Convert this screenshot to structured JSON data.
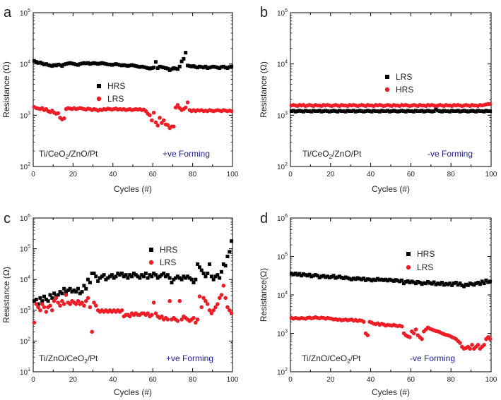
{
  "figure": {
    "panels": [
      {
        "letter": "a",
        "sample": "Ti/CeO",
        "sample_sub": "2",
        "sample_rest": "/ZnO/Pt",
        "forming": "+ve Forming",
        "ylabel": "Resistance (Ω)",
        "xlabel": "Cycles (#)"
      },
      {
        "letter": "b",
        "sample": "Ti/CeO",
        "sample_sub": "2",
        "sample_rest": "/ZnO/Pt",
        "forming": "-ve Forming",
        "ylabel": "Resistance (Ω)",
        "xlabel": "Cycles (#)"
      },
      {
        "letter": "c",
        "sample": "Ti/ZnO/CeO",
        "sample_sub": "2",
        "sample_rest": "/Pt",
        "forming": "+ve Forming",
        "ylabel": "Resistance (Ω)",
        "xlabel": "Cycles (#)"
      },
      {
        "letter": "d",
        "sample": "Ti/ZnO/CeO",
        "sample_sub": "2",
        "sample_rest": "/Pt",
        "forming": "-ve Forming",
        "ylabel": "Resistance(Ω)",
        "xlabel": "Cycles (#)"
      }
    ]
  },
  "chart_data": [
    {
      "type": "scatter",
      "panel": "a",
      "title": "",
      "xlabel": "Cycles (#)",
      "ylabel": "Resistance (Ω)",
      "xlim": [
        0,
        100
      ],
      "ylim_log10": [
        2,
        5
      ],
      "yscale": "log",
      "xticks": [
        "0",
        "20",
        "40",
        "60",
        "80",
        "100"
      ],
      "yticks": [
        {
          "base": "10",
          "exp": "2"
        },
        {
          "base": "10",
          "exp": "3"
        },
        {
          "base": "10",
          "exp": "4"
        },
        {
          "base": "10",
          "exp": "5"
        }
      ],
      "legend": [
        "HRS",
        "LRS"
      ],
      "series": [
        {
          "name": "HRS",
          "color": "#000000",
          "marker": "square",
          "log10_values": [
            4.06,
            4.04,
            4.02,
            4.03,
            4.01,
            3.99,
            4,
            3.98,
            3.97,
            3.96,
            3.98,
            3.97,
            3.99,
            3.98,
            3.96,
            3.99,
            4,
            4.01,
            4.02,
            4.01,
            4,
            3.99,
            3.98,
            4,
            4.01,
            4.02,
            4.01,
            4.02,
            4,
            4.01,
            4.02,
            4.01,
            4,
            4.01,
            4.02,
            4.01,
            4,
            3.99,
            3.99,
            3.98,
            3.99,
            4,
            3.99,
            3.98,
            3.97,
            3.98,
            3.97,
            3.96,
            3.97,
            3.98,
            3.97,
            3.96,
            3.95,
            3.94,
            3.95,
            3.94,
            3.93,
            3.92,
            3.91,
            3.92,
            3.93,
            4.04,
            3.92,
            3.95,
            3.94,
            3.93,
            3.92,
            3.91,
            3.88,
            3.9,
            3.92,
            3.91,
            3.9,
            3.95,
            4.05,
            4.1,
            4.22,
            3.97,
            3.96,
            3.95,
            3.96,
            3.94,
            3.93,
            3.95,
            3.94,
            3.93,
            3.95,
            3.92,
            3.93,
            3.94,
            3.95,
            3.94,
            3.93,
            3.92,
            3.94,
            3.95,
            3.93,
            3.92,
            3.94,
            3.95
          ]
        },
        {
          "name": "LRS",
          "color": "#ee1c24",
          "marker": "circle",
          "log10_values": [
            3.16,
            3.14,
            3.13,
            3.12,
            3.14,
            3.1,
            3.12,
            3.08,
            3.06,
            3.09,
            3.05,
            3.03,
            3.04,
            2.95,
            2.92,
            2.94,
            3.12,
            3.14,
            3.13,
            3.12,
            3.14,
            3.12,
            3.13,
            3.14,
            3.13,
            3.12,
            3.11,
            3.13,
            3.12,
            3.1,
            3.12,
            3.11,
            3.09,
            3.11,
            3.1,
            3.12,
            3.11,
            3.13,
            3.12,
            3.11,
            3.12,
            3.13,
            3.11,
            3.12,
            3.11,
            3.12,
            3.1,
            3.11,
            3.12,
            3.1,
            3.11,
            3.12,
            3.11,
            3.12,
            3.1,
            3.11,
            3.08,
            3.03,
            3,
            2.9,
            3.05,
            2.86,
            2.8,
            2.95,
            2.85,
            2.9,
            2.82,
            2.81,
            2.75,
            2.78,
            2.78,
            3.15,
            3.2,
            3.14,
            3.1,
            3.12,
            3.15,
            3.25,
            3.1,
            3.08,
            3.1,
            3.08,
            3.1,
            3.09,
            3.1,
            3.08,
            3.09,
            3.08,
            3.1,
            3.09,
            3.08,
            3.09,
            3.1,
            3.09,
            3.08,
            3.1,
            3.09,
            3.08,
            3.09,
            3.08
          ]
        }
      ]
    },
    {
      "type": "scatter",
      "panel": "b",
      "title": "",
      "xlabel": "Cycles (#)",
      "ylabel": "Resistance (Ω)",
      "xlim": [
        0,
        100
      ],
      "ylim_log10": [
        2,
        5
      ],
      "yscale": "log",
      "xticks": [
        "0",
        "20",
        "40",
        "60",
        "80",
        "100"
      ],
      "yticks": [
        {
          "base": "10",
          "exp": "2"
        },
        {
          "base": "10",
          "exp": "3"
        },
        {
          "base": "10",
          "exp": "4"
        },
        {
          "base": "10",
          "exp": "5"
        }
      ],
      "legend": [
        "LRS",
        "HRS"
      ],
      "series": [
        {
          "name": "LRS",
          "color": "#000000",
          "marker": "square",
          "log10_values": [
            3.08,
            3.09,
            3.07,
            3.08,
            3.09,
            3.08,
            3.07,
            3.09,
            3.08,
            3.08,
            3.07,
            3.09,
            3.08,
            3.08,
            3.09,
            3.07,
            3.08,
            3.09,
            3.08,
            3.07,
            3.08,
            3.09,
            3.08,
            3.07,
            3.09,
            3.08,
            3.08,
            3.07,
            3.09,
            3.08,
            3.08,
            3.09,
            3.07,
            3.08,
            3.09,
            3.08,
            3.07,
            3.08,
            3.09,
            3.08,
            3.07,
            3.09,
            3.08,
            3.08,
            3.07,
            3.09,
            3.08,
            3.08,
            3.09,
            3.07,
            3.08,
            3.09,
            3.08,
            3.07,
            3.08,
            3.09,
            3.08,
            3.07,
            3.09,
            3.08,
            3.08,
            3.07,
            3.09,
            3.08,
            3.08,
            3.09,
            3.07,
            3.08,
            3.09,
            3.08,
            3.07,
            3.08,
            3.12,
            3.09,
            3.08,
            3.07,
            3.09,
            3.08,
            3.08,
            3.07,
            3.09,
            3.08,
            3.08,
            3.09,
            3.07,
            3.08,
            3.09,
            3.08,
            3.07,
            3.08,
            3.09,
            3.08,
            3.07,
            3.09,
            3.08,
            3.08,
            3.07,
            3.09,
            3.08,
            3.08
          ]
        },
        {
          "name": "HRS",
          "color": "#ee1c24",
          "marker": "circle",
          "log10_values": [
            3.19,
            3.2,
            3.19,
            3.18,
            3.2,
            3.19,
            3.2,
            3.18,
            3.19,
            3.2,
            3.19,
            3.18,
            3.2,
            3.19,
            3.19,
            3.18,
            3.2,
            3.19,
            3.2,
            3.19,
            3.18,
            3.19,
            3.2,
            3.19,
            3.18,
            3.2,
            3.19,
            3.19,
            3.18,
            3.2,
            3.19,
            3.2,
            3.19,
            3.18,
            3.19,
            3.2,
            3.19,
            3.18,
            3.2,
            3.19,
            3.19,
            3.18,
            3.2,
            3.19,
            3.2,
            3.19,
            3.18,
            3.19,
            3.2,
            3.19,
            3.18,
            3.2,
            3.19,
            3.19,
            3.18,
            3.2,
            3.19,
            3.2,
            3.19,
            3.18,
            3.19,
            3.2,
            3.19,
            3.18,
            3.2,
            3.19,
            3.19,
            3.18,
            3.2,
            3.19,
            3.2,
            3.19,
            3.18,
            3.19,
            3.2,
            3.19,
            3.18,
            3.2,
            3.19,
            3.19,
            3.18,
            3.2,
            3.19,
            3.2,
            3.19,
            3.18,
            3.19,
            3.2,
            3.19,
            3.18,
            3.2,
            3.19,
            3.19,
            3.18,
            3.2,
            3.19,
            3.2,
            3.21,
            3.22,
            3.22
          ]
        }
      ]
    },
    {
      "type": "scatter",
      "panel": "c",
      "title": "",
      "xlabel": "Cycles (#)",
      "ylabel": "Resistance (Ω)",
      "xlim": [
        0,
        100
      ],
      "ylim_log10": [
        1,
        6
      ],
      "yscale": "log",
      "xticks": [
        "0",
        "20",
        "40",
        "60",
        "80",
        "100"
      ],
      "yticks": [
        {
          "base": "10",
          "exp": "1"
        },
        {
          "base": "10",
          "exp": "2"
        },
        {
          "base": "10",
          "exp": "3"
        },
        {
          "base": "10",
          "exp": "4"
        },
        {
          "base": "10",
          "exp": "5"
        },
        {
          "base": "10",
          "exp": "6"
        }
      ],
      "legend": [
        "HRS",
        "LRS"
      ],
      "series": [
        {
          "name": "HRS",
          "color": "#000000",
          "marker": "square",
          "log10_values": [
            3.3,
            3.35,
            3.2,
            3.4,
            3.3,
            3.45,
            3.35,
            3.3,
            3.5,
            3.4,
            3.55,
            3.45,
            3.5,
            3.6,
            3.55,
            3.7,
            3.6,
            3.65,
            3.7,
            3.6,
            3.65,
            3.6,
            3.7,
            3.55,
            3.6,
            3.8,
            3.7,
            4,
            3.9,
            4.2,
            4.2,
            4.1,
            3.95,
            4.05,
            4.1,
            4.15,
            4,
            4.05,
            4.1,
            4.15,
            4.05,
            4.1,
            4.2,
            4.15,
            4.2,
            4.1,
            4.15,
            4.05,
            4.15,
            4.1,
            4.2,
            4.15,
            4.1,
            4.05,
            4.15,
            4.1,
            4.2,
            4.05,
            4.15,
            4.1,
            4.2,
            4.15,
            4.05,
            4.1,
            4.15,
            4.2,
            4.1,
            4.15,
            4.05,
            3.9,
            4,
            4.05,
            4.1,
            4.05,
            4,
            4.1,
            4.05,
            4.1,
            4.05,
            4,
            3.9,
            4,
            4.5,
            4.4,
            4.3,
            4.2,
            4.1,
            4.2,
            4.5,
            4.1,
            4,
            4.1,
            4.15,
            4.05,
            4.25,
            4.5,
            4.45,
            4.75,
            4.9,
            5.25
          ]
        },
        {
          "name": "LRS",
          "color": "#ee1c24",
          "marker": "circle",
          "log10_values": [
            2.6,
            3.2,
            3.1,
            3,
            3.2,
            3.1,
            2.95,
            3.1,
            3.15,
            3,
            3.3,
            3.4,
            3.25,
            3.15,
            3.3,
            3.2,
            3.5,
            3.25,
            3.2,
            3.3,
            3.25,
            3.2,
            3.3,
            3.2,
            3.25,
            3.15,
            3.3,
            3.4,
            3.1,
            2.3,
            3.25,
            3.15,
            3,
            2.95,
            3,
            2.95,
            3,
            2.95,
            3,
            2.95,
            3,
            2.95,
            3,
            2.95,
            3,
            2.8,
            2.85,
            2.85,
            2.8,
            2.9,
            2.85,
            2.9,
            2.85,
            2.85,
            2.9,
            2.9,
            2.85,
            2.9,
            2.8,
            2.85,
            3.25,
            2.9,
            2.8,
            2.75,
            2.8,
            2.7,
            2.75,
            2.7,
            3.3,
            2.7,
            2.75,
            2.7,
            2.65,
            3.3,
            2.7,
            2.8,
            2.75,
            2.7,
            2.65,
            2.7,
            2.75,
            2.6,
            2.7,
            3.45,
            3.1,
            3.4,
            3.3,
            3.2,
            3,
            2.9,
            3,
            3.1,
            3.2,
            3.4,
            3.5,
            3.8,
            3.4,
            3.1,
            3,
            2.9
          ]
        }
      ]
    },
    {
      "type": "scatter",
      "panel": "d",
      "title": "",
      "xlabel": "Cycles (#)",
      "ylabel": "Resistance(Ω)",
      "xlim": [
        0,
        100
      ],
      "ylim_log10": [
        2,
        6
      ],
      "yscale": "log",
      "xticks": [
        "0",
        "20",
        "40",
        "60",
        "80",
        "100"
      ],
      "yticks": [
        {
          "base": "10",
          "exp": "2"
        },
        {
          "base": "10",
          "exp": "3"
        },
        {
          "base": "10",
          "exp": "4"
        },
        {
          "base": "10",
          "exp": "5"
        },
        {
          "base": "10",
          "exp": "6"
        }
      ],
      "legend": [
        "HRS",
        "LRS"
      ],
      "series": [
        {
          "name": "HRS",
          "color": "#000000",
          "marker": "square",
          "log10_values": [
            4.55,
            4.53,
            4.56,
            4.52,
            4.55,
            4.5,
            4.54,
            4.52,
            4.5,
            4.53,
            4.48,
            4.5,
            4.52,
            4.5,
            4.45,
            4.48,
            4.5,
            4.46,
            4.48,
            4.45,
            4.47,
            4.5,
            4.44,
            4.46,
            4.48,
            4.45,
            4.43,
            4.46,
            4.44,
            4.42,
            4.4,
            4.43,
            4.41,
            4.44,
            4.42,
            4.4,
            4.43,
            4.38,
            4.41,
            4.4,
            4.37,
            4.4,
            4.38,
            4.42,
            4.39,
            4.4,
            4.38,
            4.4,
            4.37,
            4.4,
            4.38,
            4.36,
            4.39,
            4.37,
            4.35,
            4.38,
            4.3,
            4.34,
            4.36,
            4.32,
            4.35,
            4.33,
            4.3,
            4.34,
            4.32,
            4.28,
            4.31,
            4.3,
            4.34,
            4.31,
            4.29,
            4.33,
            4.27,
            4.3,
            4.28,
            4.32,
            4.26,
            4.29,
            4.27,
            4.3,
            4.25,
            4.3,
            4.32,
            4.26,
            4.3,
            4.25,
            4.22,
            4.27,
            4.25,
            4.3,
            4.28,
            4.26,
            4.3,
            4.32,
            4.28,
            4.35,
            4.3,
            4.38,
            4.33,
            4.35
          ]
        },
        {
          "name": "LRS",
          "color": "#ee1c24",
          "marker": "circle",
          "log10_values": [
            3.4,
            3.38,
            3.4,
            3.39,
            3.38,
            3.4,
            3.39,
            3.38,
            3.4,
            3.41,
            3.39,
            3.4,
            3.42,
            3.4,
            3.39,
            3.41,
            3.4,
            3.38,
            3.4,
            3.39,
            3.38,
            3.36,
            3.37,
            3.35,
            3.36,
            3.34,
            3.35,
            3.36,
            3.34,
            3.35,
            3.36,
            3.33,
            3.35,
            3.32,
            3.34,
            3.33,
            3.3,
            3,
            2.95,
            3.3,
            3.28,
            3.25,
            3.24,
            3.26,
            3.22,
            3.25,
            3.23,
            3.2,
            3.22,
            3.21,
            3.2,
            3.22,
            3.2,
            3.19,
            3.2,
            3.18,
            3,
            2.95,
            2.92,
            2.9,
            3.05,
            3,
            3.1,
            2.95,
            2.9,
            2.85,
            3.05,
            3.1,
            3.15,
            3.12,
            3.1,
            3.08,
            3.06,
            3.05,
            3.03,
            3,
            2.98,
            2.96,
            2.95,
            2.93,
            2.9,
            2.88,
            2.85,
            2.8,
            2.75,
            2.65,
            2.6,
            2.62,
            2.65,
            2.6,
            2.7,
            2.6,
            2.65,
            2.7,
            2.6,
            2.65,
            2.7,
            2.85,
            2.9,
            2.85
          ]
        }
      ]
    }
  ]
}
